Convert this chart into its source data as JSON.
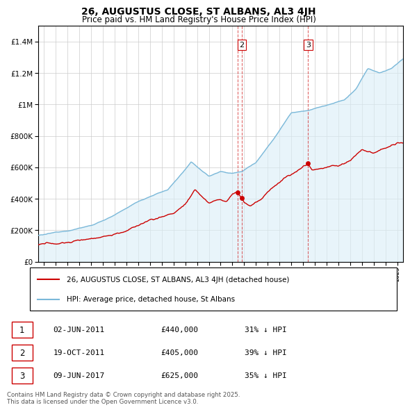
{
  "title": "26, AUGUSTUS CLOSE, ST ALBANS, AL3 4JH",
  "subtitle": "Price paid vs. HM Land Registry's House Price Index (HPI)",
  "hpi_color": "#7ab8d9",
  "hpi_fill_color": "#daeef7",
  "price_color": "#cc0000",
  "annotation_color": "#cc0000",
  "background_color": "#ffffff",
  "grid_color": "#cccccc",
  "legend_label_price": "26, AUGUSTUS CLOSE, ST ALBANS, AL3 4JH (detached house)",
  "legend_label_hpi": "HPI: Average price, detached house, St Albans",
  "transactions": [
    {
      "num": 1,
      "date": "02-JUN-2011",
      "price": 440000,
      "pct": "31% ↓ HPI",
      "x": 2011.42,
      "show_label": false
    },
    {
      "num": 2,
      "date": "19-OCT-2011",
      "price": 405000,
      "pct": "39% ↓ HPI",
      "x": 2011.8,
      "show_label": true
    },
    {
      "num": 3,
      "date": "09-JUN-2017",
      "price": 625000,
      "pct": "35% ↓ HPI",
      "x": 2017.44,
      "show_label": true
    }
  ],
  "footer": "Contains HM Land Registry data © Crown copyright and database right 2025.\nThis data is licensed under the Open Government Licence v3.0.",
  "ylim": [
    0,
    1500000
  ],
  "yticks": [
    0,
    200000,
    400000,
    600000,
    800000,
    1000000,
    1200000,
    1400000
  ],
  "xlim": [
    1994.5,
    2025.5
  ],
  "xticks": [
    1995,
    1996,
    1997,
    1998,
    1999,
    2000,
    2001,
    2002,
    2003,
    2004,
    2005,
    2006,
    2007,
    2008,
    2009,
    2010,
    2011,
    2012,
    2013,
    2014,
    2015,
    2016,
    2017,
    2018,
    2019,
    2020,
    2021,
    2022,
    2023,
    2024,
    2025
  ]
}
